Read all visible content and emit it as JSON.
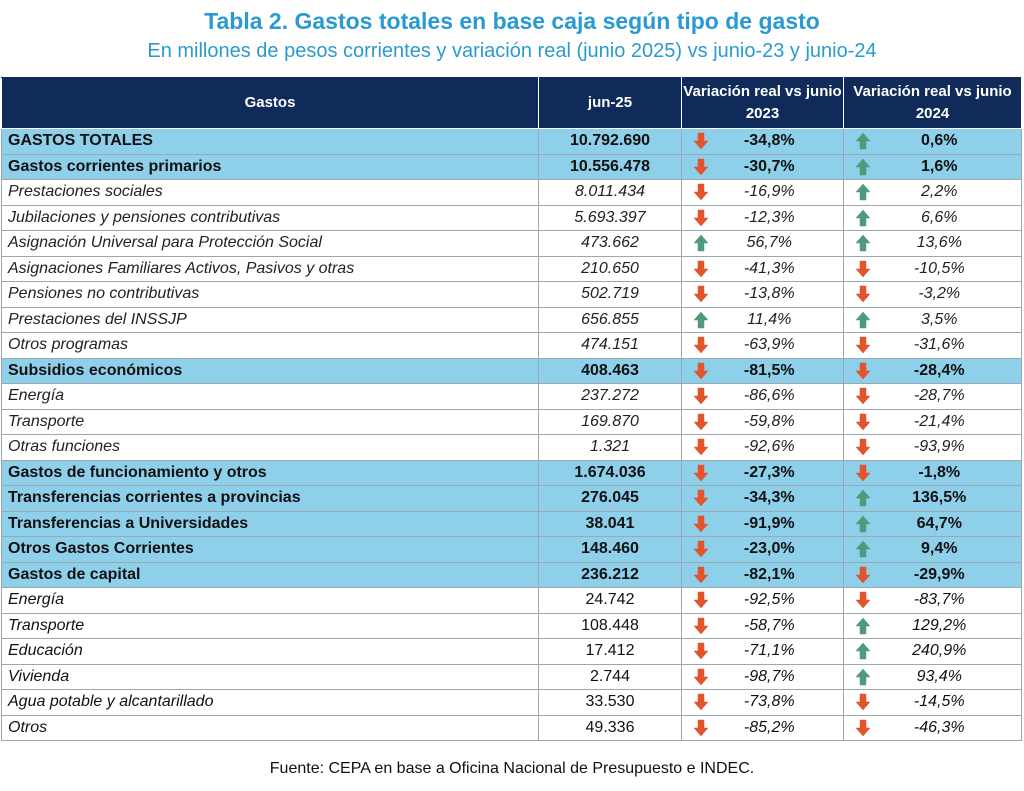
{
  "title": "Tabla 2. Gastos totales en base caja según tipo de gasto",
  "subtitle": "En millones de pesos corrientes y variación real (junio 2025) vs junio-23 y junio-24",
  "colors": {
    "title": "#2a9ad0",
    "header_bg": "#102a5a",
    "highlight_bg": "#8ecfea",
    "arrow_up": "#4f9a7b",
    "arrow_down": "#e2542c"
  },
  "headers": {
    "gastos": "Gastos",
    "jun25": "jun-25",
    "var23": "Variación real vs junio 2023",
    "var24": "Variación real vs junio 2024"
  },
  "rows": [
    {
      "label": "GASTOS TOTALES",
      "value": "10.792.690",
      "v23": "-34,8%",
      "d23": "down",
      "v24": "0,6%",
      "d24": "up",
      "style": "bold"
    },
    {
      "label": "Gastos corrientes primarios",
      "value": "10.556.478",
      "v23": "-30,7%",
      "d23": "down",
      "v24": "1,6%",
      "d24": "up",
      "style": "bold"
    },
    {
      "label": "Prestaciones sociales",
      "value": "8.011.434",
      "v23": "-16,9%",
      "d23": "down",
      "v24": "2,2%",
      "d24": "up",
      "style": "italic"
    },
    {
      "label": "Jubilaciones y pensiones contributivas",
      "value": "5.693.397",
      "v23": "-12,3%",
      "d23": "down",
      "v24": "6,6%",
      "d24": "up",
      "style": "italic"
    },
    {
      "label": "Asignación Universal para Protección Social",
      "value": "473.662",
      "v23": "56,7%",
      "d23": "up",
      "v24": "13,6%",
      "d24": "up",
      "style": "italic"
    },
    {
      "label": "Asignaciones Familiares Activos, Pasivos y otras",
      "value": "210.650",
      "v23": "-41,3%",
      "d23": "down",
      "v24": "-10,5%",
      "d24": "down",
      "style": "italic"
    },
    {
      "label": "Pensiones no contributivas",
      "value": "502.719",
      "v23": "-13,8%",
      "d23": "down",
      "v24": "-3,2%",
      "d24": "down",
      "style": "italic"
    },
    {
      "label": "Prestaciones del INSSJP",
      "value": "656.855",
      "v23": "11,4%",
      "d23": "up",
      "v24": "3,5%",
      "d24": "up",
      "style": "italic"
    },
    {
      "label": "Otros programas",
      "value": "474.151",
      "v23": "-63,9%",
      "d23": "down",
      "v24": "-31,6%",
      "d24": "down",
      "style": "italic"
    },
    {
      "label": "Subsidios económicos",
      "value": "408.463",
      "v23": "-81,5%",
      "d23": "down",
      "v24": "-28,4%",
      "d24": "down",
      "style": "bold"
    },
    {
      "label": "Energía",
      "value": "237.272",
      "v23": "-86,6%",
      "d23": "down",
      "v24": "-28,7%",
      "d24": "down",
      "style": "italic"
    },
    {
      "label": "Transporte",
      "value": "169.870",
      "v23": "-59,8%",
      "d23": "down",
      "v24": "-21,4%",
      "d24": "down",
      "style": "italic"
    },
    {
      "label": "Otras funciones",
      "value": "1.321",
      "v23": "-92,6%",
      "d23": "down",
      "v24": "-93,9%",
      "d24": "down",
      "style": "italic"
    },
    {
      "label": "Gastos de funcionamiento y otros",
      "value": "1.674.036",
      "v23": "-27,3%",
      "d23": "down",
      "v24": "-1,8%",
      "d24": "down",
      "style": "bold"
    },
    {
      "label": "Transferencias corrientes a provincias",
      "value": "276.045",
      "v23": "-34,3%",
      "d23": "down",
      "v24": "136,5%",
      "d24": "up",
      "style": "bold"
    },
    {
      "label": "Transferencias a Universidades",
      "value": "38.041",
      "v23": "-91,9%",
      "d23": "down",
      "v24": "64,7%",
      "d24": "up",
      "style": "bold"
    },
    {
      "label": "Otros Gastos Corrientes",
      "value": "148.460",
      "v23": "-23,0%",
      "d23": "down",
      "v24": "9,4%",
      "d24": "up",
      "style": "bold"
    },
    {
      "label": "Gastos de capital",
      "value": "236.212",
      "v23": "-82,1%",
      "d23": "down",
      "v24": "-29,9%",
      "d24": "down",
      "style": "bold"
    },
    {
      "label": "Energía",
      "value": "24.742",
      "v23": "-92,5%",
      "d23": "down",
      "v24": "-83,7%",
      "d24": "down",
      "style": "plain"
    },
    {
      "label": "Transporte",
      "value": "108.448",
      "v23": "-58,7%",
      "d23": "down",
      "v24": "129,2%",
      "d24": "up",
      "style": "plain"
    },
    {
      "label": "Educación",
      "value": "17.412",
      "v23": "-71,1%",
      "d23": "down",
      "v24": "240,9%",
      "d24": "up",
      "style": "plain"
    },
    {
      "label": "Vivienda",
      "value": "2.744",
      "v23": "-98,7%",
      "d23": "down",
      "v24": "93,4%",
      "d24": "up",
      "style": "plain"
    },
    {
      "label": "Agua potable y alcantarillado",
      "value": "33.530",
      "v23": "-73,8%",
      "d23": "down",
      "v24": "-14,5%",
      "d24": "down",
      "style": "plain"
    },
    {
      "label": "Otros",
      "value": "49.336",
      "v23": "-85,2%",
      "d23": "down",
      "v24": "-46,3%",
      "d24": "down",
      "style": "plain"
    }
  ],
  "source": "Fuente: CEPA en base a Oficina Nacional de Presupuesto e INDEC."
}
